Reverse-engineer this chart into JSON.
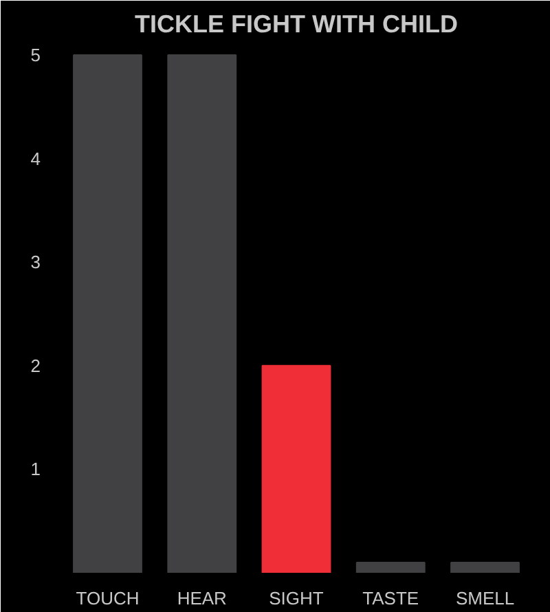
{
  "chart_data": {
    "type": "bar",
    "title": "TICKLE FIGHT WITH CHILD",
    "categories": [
      "TOUCH",
      "HEAR",
      "SIGHT",
      "TASTE",
      "SMELL"
    ],
    "values": [
      5,
      5,
      2,
      0.1,
      0.1
    ],
    "colors": [
      "#414042",
      "#414042",
      "#ef2e38",
      "#414042",
      "#414042"
    ],
    "ylim": [
      0,
      5
    ],
    "yticks": [
      1,
      2,
      3,
      4,
      5
    ],
    "grid": false
  }
}
